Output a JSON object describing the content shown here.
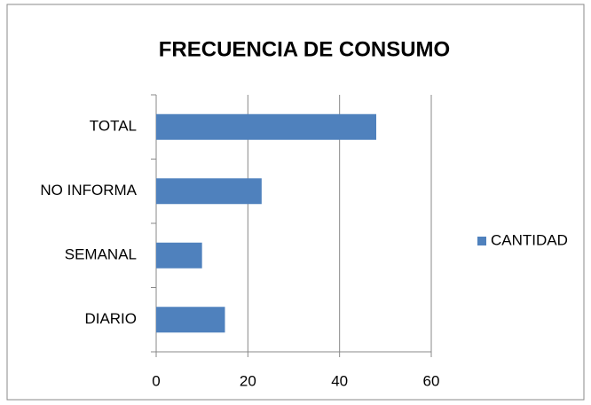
{
  "chart_data": {
    "type": "bar",
    "orientation": "horizontal",
    "title": "FRECUENCIA DE CONSUMO",
    "categories": [
      "TOTAL",
      "NO INFORMA",
      "SEMANAL",
      "DIARIO"
    ],
    "series": [
      {
        "name": "CANTIDAD",
        "color": "#4f81bd",
        "values": [
          48,
          23,
          10,
          15
        ]
      }
    ],
    "xlim": [
      0,
      60
    ],
    "xticks": [
      0,
      20,
      40,
      60
    ],
    "grid": true,
    "legend": "right"
  }
}
